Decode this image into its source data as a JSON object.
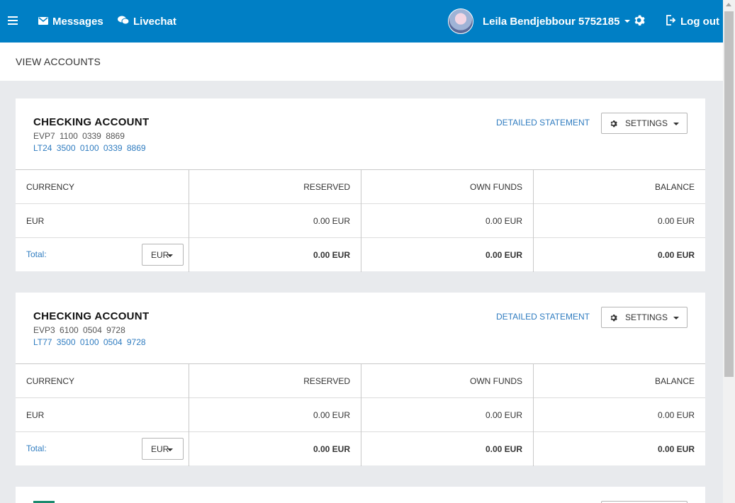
{
  "topbar": {
    "messages": "Messages",
    "livechat": "Livechat",
    "user_name": "Leila Bendjebbour 5752185",
    "logout": "Log out",
    "colors": {
      "bar": "#007fc5"
    }
  },
  "page": {
    "title": "VIEW ACCOUNTS"
  },
  "accounts": [
    {
      "title": "CHECKING ACCOUNT",
      "number": "EVP7 1100 0339 8869",
      "iban": "LT24 3500 0100 0339 8869",
      "statement": "DETAILED STATEMENT",
      "settings": "SETTINGS",
      "headers": [
        "CURRENCY",
        "RESERVED",
        "OWN FUNDS",
        "BALANCE"
      ],
      "row": [
        "EUR",
        "0.00 EUR",
        "0.00 EUR",
        "0.00 EUR"
      ],
      "total_label": "Total:",
      "total_currency": "EUR",
      "totals": [
        "0.00 EUR",
        "0.00 EUR",
        "0.00 EUR"
      ]
    },
    {
      "title": "CHECKING ACCOUNT",
      "number": "EVP3 6100 0504 9728",
      "iban": "LT77 3500 0100 0504 9728",
      "statement": "DETAILED STATEMENT",
      "settings": "SETTINGS",
      "headers": [
        "CURRENCY",
        "RESERVED",
        "OWN FUNDS",
        "BALANCE"
      ],
      "row": [
        "EUR",
        "0.00 EUR",
        "0.00 EUR",
        "0.00 EUR"
      ],
      "total_label": "Total:",
      "total_currency": "EUR",
      "totals": [
        "0.00 EUR",
        "0.00 EUR",
        "0.00 EUR"
      ]
    }
  ]
}
